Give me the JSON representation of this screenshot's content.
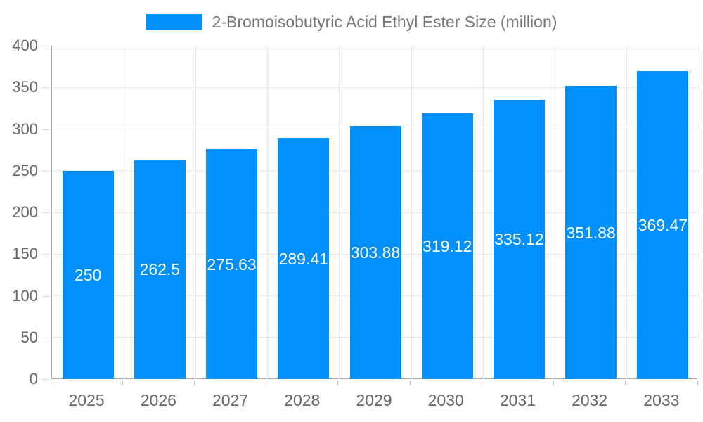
{
  "legend": {
    "label": "2-Bromoisobutyric Acid Ethyl Ester Size (million)"
  },
  "chart_data": {
    "type": "bar",
    "title": "2-Bromoisobutyric Acid Ethyl Ester Size (million)",
    "categories": [
      "2025",
      "2026",
      "2027",
      "2028",
      "2029",
      "2030",
      "2031",
      "2032",
      "2033"
    ],
    "series": [
      {
        "name": "2-Bromoisobutyric Acid Ethyl Ester Size (million)",
        "values": [
          250,
          262.5,
          275.63,
          289.41,
          303.88,
          319.12,
          335.12,
          351.88,
          369.47
        ]
      }
    ],
    "data_labels": [
      "250",
      "262.5",
      "275.63",
      "289.41",
      "303.88",
      "319.12",
      "335.12",
      "351.88",
      "369.47"
    ],
    "ylabel": "",
    "xlabel": "",
    "ylim": [
      0,
      400
    ],
    "ytick_step": 50,
    "yticks": [
      "0",
      "50",
      "100",
      "150",
      "200",
      "250",
      "300",
      "350",
      "400"
    ],
    "grid": "horizontal-and-vertical",
    "legend_position": "top-center",
    "colors": {
      "bar": "#008FFB",
      "data_label": "#ffffff",
      "axis_label": "#666666",
      "legend_text": "#757575",
      "grid_line": "#e7e7e7",
      "axis_line": "#ababab"
    }
  }
}
